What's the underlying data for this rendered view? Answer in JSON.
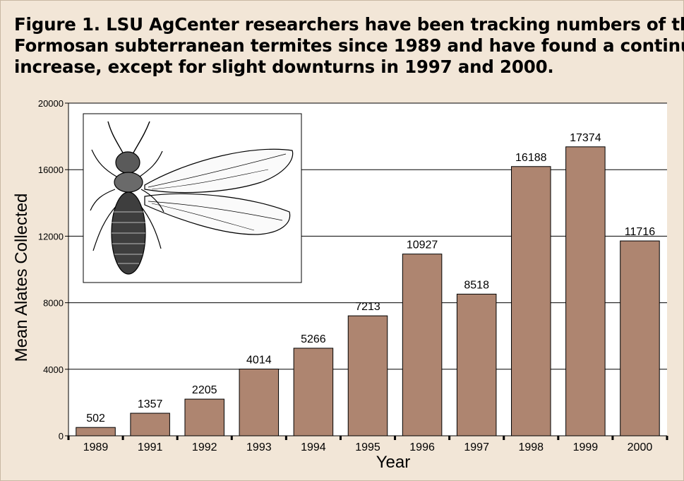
{
  "figure": {
    "title_lines": [
      "Figure 1. LSU AgCenter researchers have been tracking numbers of the",
      "Formosan subterranean termites since 1989 and have found a continual",
      "increase, except for slight downturns in 1997 and 2000."
    ]
  },
  "chart_data": {
    "type": "bar",
    "title": "",
    "xlabel": "Year",
    "ylabel": "Mean Alates Collected",
    "categories": [
      "1989",
      "1991",
      "1992",
      "1993",
      "1994",
      "1995",
      "1996",
      "1997",
      "1998",
      "1999",
      "2000"
    ],
    "values": [
      502,
      1357,
      2205,
      4014,
      5266,
      7213,
      10927,
      8518,
      16188,
      17374,
      11716
    ],
    "data_labels": [
      "502",
      "1357",
      "2205",
      "4014",
      "5266",
      "7213",
      "10927",
      "8518",
      "16188",
      "17374",
      "11716"
    ],
    "ylim": [
      0,
      20000
    ],
    "yticks": [
      0,
      4000,
      8000,
      12000,
      16000,
      20000
    ],
    "ytick_labels": [
      "0",
      "4000",
      "8000",
      "12000",
      "16000",
      "20000"
    ],
    "grid": true,
    "legend": "none",
    "bar_color": "#ae8570",
    "grid_color": "#000000",
    "illustration": "termite-alate-drawing"
  }
}
